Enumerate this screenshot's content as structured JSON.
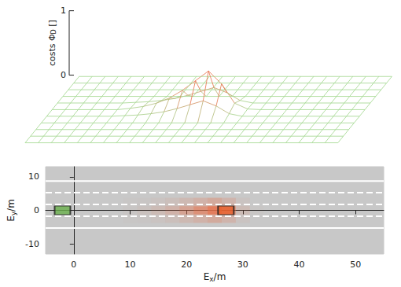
{
  "chart_data": {
    "type": "surface",
    "z_label": {
      "text": "costs ΦD []",
      "subscript": "D"
    },
    "x_label": {
      "text": "Ex/m",
      "subscript": "x"
    },
    "y_label": {
      "text": "Ey/m",
      "subscript": "y"
    },
    "xlim": [
      -5,
      55
    ],
    "xticks": [
      0,
      10,
      20,
      30,
      40,
      50
    ],
    "ylim": [
      -13,
      13
    ],
    "yticks": [
      -10,
      0,
      10
    ],
    "zlim": [
      0,
      1
    ],
    "zticks": [
      0,
      1
    ],
    "surface": {
      "x": [
        -5,
        -2.5,
        0,
        2.5,
        5,
        7.5,
        10,
        12.5,
        15,
        17.5,
        20,
        22.5,
        25,
        27.5,
        30,
        32.5,
        35,
        37.5,
        40,
        42.5,
        45,
        47.5,
        50,
        52.5,
        55
      ],
      "y": [
        -12.5,
        -10,
        -7.5,
        -5,
        -2.5,
        0,
        2.5,
        5,
        7.5,
        10,
        12.5
      ],
      "z": [
        [
          0,
          0,
          0,
          0,
          0,
          0,
          0,
          0,
          0,
          0,
          0,
          0,
          0,
          0,
          0,
          0,
          0,
          0,
          0,
          0,
          0,
          0,
          0,
          0,
          0
        ],
        [
          0,
          0,
          0,
          0,
          0,
          0,
          0,
          0,
          0,
          0,
          0,
          0,
          0,
          0,
          0,
          0,
          0,
          0,
          0,
          0,
          0,
          0,
          0,
          0,
          0
        ],
        [
          0,
          0,
          0,
          0,
          0,
          0,
          0,
          0,
          0,
          0,
          0,
          0,
          0,
          0,
          0,
          0,
          0,
          0,
          0,
          0,
          0,
          0,
          0,
          0,
          0
        ],
        [
          0,
          0,
          0,
          0,
          0,
          0,
          0,
          0,
          0,
          0,
          0,
          0,
          0,
          0,
          0,
          0,
          0,
          0,
          0,
          0,
          0,
          0,
          0,
          0,
          0
        ],
        [
          0,
          0,
          0,
          0,
          0,
          0,
          0.01,
          0.02,
          0.04,
          0.07,
          0.12,
          0.18,
          0.24,
          0.16,
          0.04,
          0,
          0,
          0,
          0,
          0,
          0,
          0,
          0,
          0,
          0
        ],
        [
          0,
          0,
          0,
          0,
          0,
          0,
          0.02,
          0.05,
          0.1,
          0.18,
          0.3,
          0.45,
          0.6,
          0.4,
          0.1,
          0.01,
          0,
          0,
          0,
          0,
          0,
          0,
          0,
          0,
          0
        ],
        [
          0,
          0,
          0,
          0,
          0,
          0,
          0.01,
          0.02,
          0.04,
          0.07,
          0.12,
          0.18,
          0.24,
          0.16,
          0.04,
          0,
          0,
          0,
          0,
          0,
          0,
          0,
          0,
          0,
          0
        ],
        [
          0,
          0,
          0,
          0,
          0,
          0,
          0,
          0,
          0,
          0,
          0,
          0,
          0,
          0,
          0,
          0,
          0,
          0,
          0,
          0,
          0,
          0,
          0,
          0,
          0
        ],
        [
          0,
          0,
          0,
          0,
          0,
          0,
          0,
          0,
          0,
          0,
          0,
          0,
          0,
          0,
          0,
          0,
          0,
          0,
          0,
          0,
          0,
          0,
          0,
          0,
          0
        ],
        [
          0,
          0,
          0,
          0,
          0,
          0,
          0,
          0,
          0,
          0,
          0,
          0,
          0,
          0,
          0,
          0,
          0,
          0,
          0,
          0,
          0,
          0,
          0,
          0,
          0
        ],
        [
          0,
          0,
          0,
          0,
          0,
          0,
          0,
          0,
          0,
          0,
          0,
          0,
          0,
          0,
          0,
          0,
          0,
          0,
          0,
          0,
          0,
          0,
          0,
          0,
          0
        ]
      ]
    },
    "lane_lines": [
      {
        "y": -5.25,
        "line_style": "solid"
      },
      {
        "y": -1.75,
        "line_style": "dashed"
      },
      {
        "y": 1.75,
        "line_style": "dashed"
      },
      {
        "y": 5.25,
        "line_style": "dashed"
      },
      {
        "y": 8.75,
        "line_style": "solid"
      }
    ],
    "vehicles": [
      {
        "x": -2,
        "y": 0,
        "color": "#6ab04c"
      },
      {
        "x": 27,
        "y": 0,
        "color": "#e8602c"
      }
    ]
  }
}
